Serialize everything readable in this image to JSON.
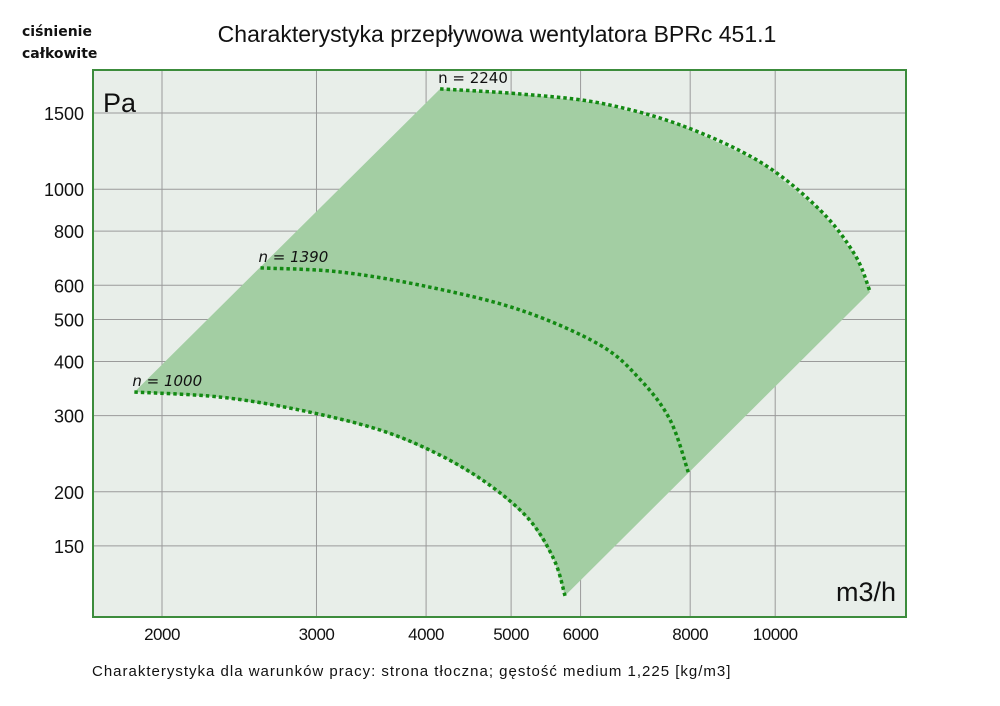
{
  "chart_data": {
    "type": "line",
    "title": "Charakterystyka przepływowa wentylatora BPRc 451.1",
    "ylabel_title": [
      "ciśnienie",
      "całkowite"
    ],
    "yunit": "Pa",
    "xunit": "m3/h",
    "footnote": "Charakterystyka dla warunków pracy: strona tłoczna; gęstość medium 1,225 [kg/m3]",
    "xscale": "log",
    "yscale": "log",
    "xlim": [
      1650,
      13800
    ],
    "ylim": [
      112,
      1900
    ],
    "grid": true,
    "xticks": [
      2000,
      3000,
      4000,
      5000,
      6000,
      8000,
      10000
    ],
    "xtick_labels": [
      "2000",
      "3000",
      "4000",
      "5000",
      "6000",
      "8000",
      "10000"
    ],
    "yticks": [
      1500,
      1000,
      800,
      600,
      500,
      400,
      300,
      200,
      150
    ],
    "ytick_labels": [
      "1500",
      "1000",
      "800",
      "600",
      "500",
      "400",
      "300",
      "200",
      "150"
    ],
    "series": [
      {
        "name": "n = 2240",
        "x": [
          4150,
          5120,
          6310,
          7800,
          9620,
          11250,
          12330,
          12830
        ],
        "y": [
          1705,
          1660,
          1582,
          1407,
          1155,
          895,
          705,
          579
        ]
      },
      {
        "name": "n = 1390",
        "x": [
          2590,
          3190,
          4040,
          5120,
          6310,
          7020,
          7590,
          7960
        ],
        "y": [
          658,
          644,
          594,
          526,
          437,
          363,
          293,
          222
        ]
      },
      {
        "name": "n = 1000",
        "x": [
          1860,
          2330,
          2870,
          3540,
          4150,
          4730,
          5250,
          5600,
          5760
        ],
        "y": [
          340,
          331,
          309,
          278,
          243,
          207,
          172,
          139,
          115
        ]
      }
    ],
    "colors": {
      "area": "#a3cea3",
      "curve": "#138a13",
      "background": "#e8eee9",
      "frame": "#3c8c3c",
      "grid": "#9a9a9a"
    }
  }
}
